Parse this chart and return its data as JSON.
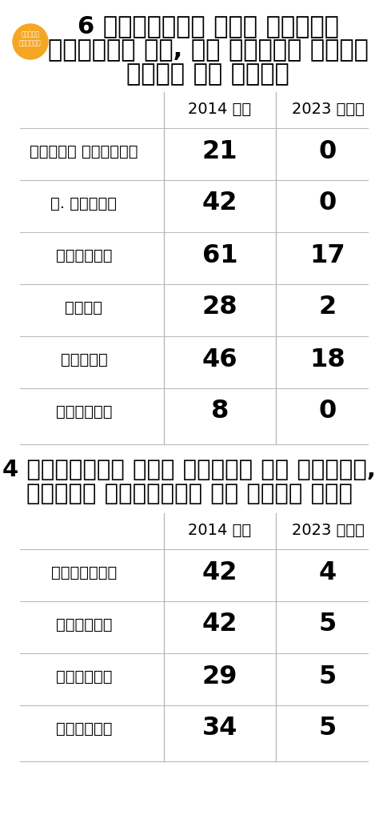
{
  "title1_line1": "6 राज्यों में मजबूत",
  "title1_line2": "विपक्ष थे, आज विरोध करने",
  "title1_line3": "लायक भी नहीं",
  "title2_line1": "4 राज्यों में सरकार भी गंवाई,",
  "title2_line2": "मजबूत विपक्षी भी नहीं रहे",
  "col1_header": "2014 तक",
  "col2_header": "2023 में",
  "table1": [
    {
      "state": "आंध्र प्रदेश",
      "val2014": "21",
      "val2023": "0"
    },
    {
      "state": "प. बंगाल",
      "val2014": "42",
      "val2023": "0"
    },
    {
      "state": "गुजरात",
      "val2014": "61",
      "val2023": "17"
    },
    {
      "state": "यूपी",
      "val2014": "28",
      "val2023": "2"
    },
    {
      "state": "पंजाब",
      "val2014": "46",
      "val2023": "18"
    },
    {
      "state": "दिल्ली",
      "val2014": "8",
      "val2023": "0"
    }
  ],
  "table2": [
    {
      "state": "अरुणाचल",
      "val2014": "42",
      "val2023": "4"
    },
    {
      "state": "मणिपुर",
      "val2014": "42",
      "val2023": "5"
    },
    {
      "state": "मेघालय",
      "val2014": "29",
      "val2023": "5"
    },
    {
      "state": "मिजोरम",
      "val2014": "34",
      "val2023": "5"
    }
  ],
  "bg_color": "#ffffff",
  "text_color": "#000000",
  "line_color": "#bbbbbb",
  "logo_color_orange": "#f5a623",
  "logo_text": "दैनिक\nभास्कर"
}
